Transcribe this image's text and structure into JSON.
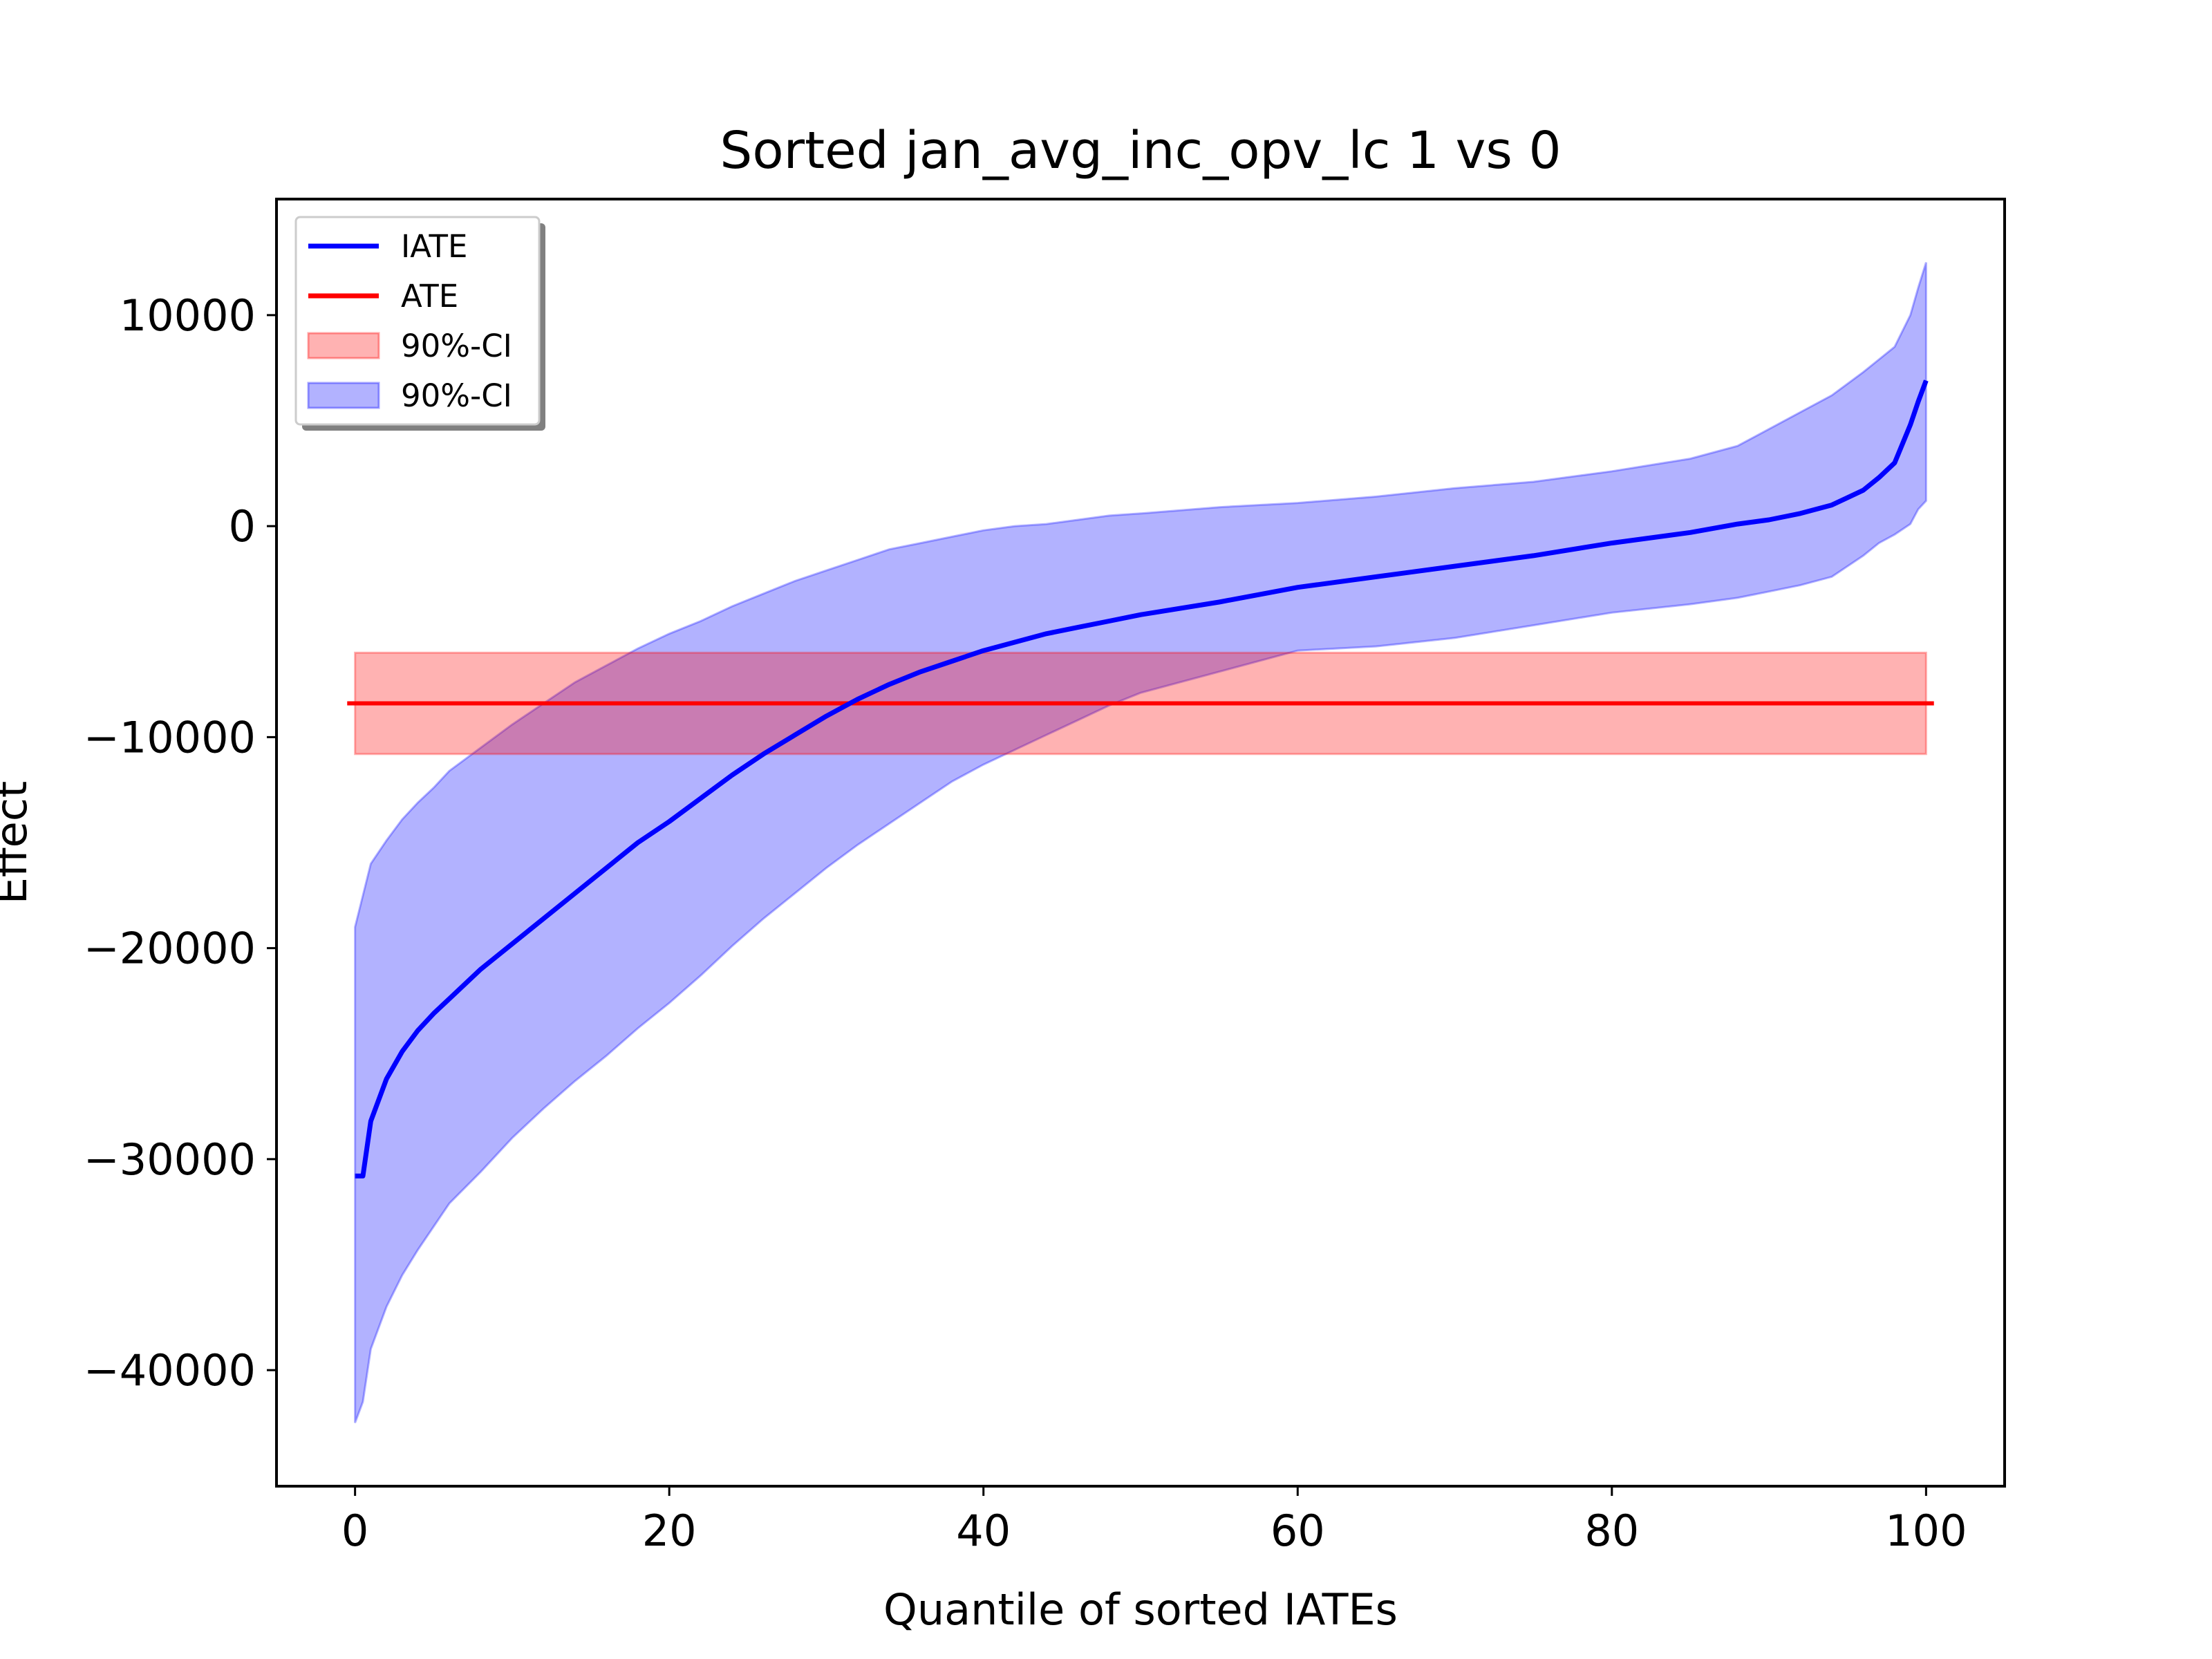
{
  "chart_data": {
    "type": "line",
    "title": "Sorted jan_avg_inc_opv_lc 1 vs 0",
    "xlabel": "Quantile of sorted IATEs",
    "ylabel": "Effect",
    "xlim": [
      -5,
      105
    ],
    "ylim": [
      -45500,
      15500
    ],
    "xticks": [
      0,
      20,
      40,
      60,
      80,
      100
    ],
    "xtick_labels": [
      "0",
      "20",
      "40",
      "60",
      "80",
      "100"
    ],
    "yticks": [
      10000,
      0,
      -10000,
      -20000,
      -30000,
      -40000
    ],
    "ytick_labels": [
      "10000",
      "0",
      "−10000",
      "−20000",
      "−30000",
      "−40000"
    ],
    "grid": false,
    "legend_position": "top-left",
    "legend": [
      {
        "label": "IATE",
        "kind": "line",
        "color": "#0000ff"
      },
      {
        "label": "ATE",
        "kind": "line",
        "color": "#ff0000"
      },
      {
        "label": "90%-CI",
        "kind": "patch",
        "color": "#ff0000"
      },
      {
        "label": "90%-CI",
        "kind": "patch",
        "color": "#0000ff"
      }
    ],
    "ate": {
      "value": -8400,
      "ci_lower": -10800,
      "ci_upper": -6000,
      "x_range": [
        0,
        100
      ],
      "color": "#ff0000"
    },
    "iate": {
      "name": "IATE",
      "color": "#0000ff",
      "x": [
        0,
        0.5,
        1,
        2,
        3,
        4,
        5,
        6,
        8,
        10,
        12,
        14,
        16,
        18,
        20,
        22,
        24,
        26,
        28,
        30,
        32,
        34,
        36,
        38,
        40,
        42,
        44,
        46,
        48,
        50,
        55,
        60,
        65,
        70,
        75,
        80,
        85,
        88,
        90,
        92,
        94,
        96,
        97,
        98,
        99,
        99.5,
        100
      ],
      "y": [
        -30800,
        -30800,
        -28200,
        -26200,
        -24900,
        -23900,
        -23100,
        -22400,
        -21000,
        -19800,
        -18600,
        -17400,
        -16200,
        -15000,
        -14000,
        -12900,
        -11800,
        -10800,
        -9900,
        -9000,
        -8200,
        -7500,
        -6900,
        -6400,
        -5900,
        -5500,
        -5100,
        -4800,
        -4500,
        -4200,
        -3600,
        -2900,
        -2400,
        -1900,
        -1400,
        -800,
        -300,
        100,
        300,
        600,
        1000,
        1700,
        2300,
        3000,
        4800,
        5900,
        6900
      ],
      "ci_lower": [
        -42500,
        -41500,
        -39000,
        -37000,
        -35500,
        -34300,
        -33200,
        -32100,
        -30600,
        -29000,
        -27600,
        -26300,
        -25100,
        -23800,
        -22600,
        -21300,
        -19900,
        -18600,
        -17400,
        -16200,
        -15100,
        -14100,
        -13100,
        -12100,
        -11300,
        -10600,
        -9900,
        -9200,
        -8500,
        -7900,
        -6900,
        -5900,
        -5700,
        -5300,
        -4700,
        -4100,
        -3700,
        -3400,
        -3100,
        -2800,
        -2400,
        -1400,
        -800,
        -400,
        100,
        800,
        1200
      ],
      "ci_upper": [
        -19000,
        -17500,
        -16000,
        -14900,
        -13900,
        -13100,
        -12400,
        -11600,
        -10500,
        -9400,
        -8400,
        -7400,
        -6600,
        -5800,
        -5100,
        -4500,
        -3800,
        -3200,
        -2600,
        -2100,
        -1600,
        -1100,
        -800,
        -500,
        -200,
        0,
        100,
        300,
        500,
        600,
        900,
        1100,
        1400,
        1800,
        2100,
        2600,
        3200,
        3800,
        4600,
        5400,
        6200,
        7300,
        7900,
        8500,
        10000,
        11300,
        12500
      ]
    }
  }
}
